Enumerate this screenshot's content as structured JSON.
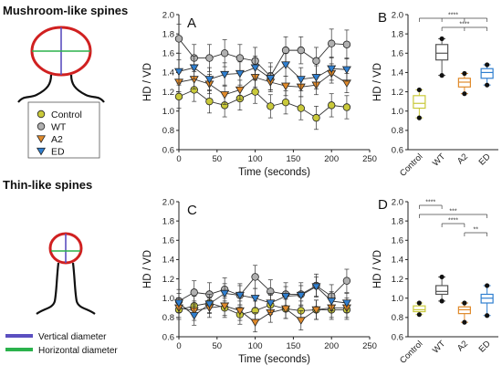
{
  "sections": {
    "mushroom_title": "Mushroom-like spines",
    "thin_title": "Thin-like spines"
  },
  "legend": {
    "items": [
      {
        "label": "Control",
        "color": "#c9c93a",
        "shape": "circle"
      },
      {
        "label": "WT",
        "color": "#b0b0b0",
        "shape": "circle"
      },
      {
        "label": "A2",
        "color": "#e08a2a",
        "shape": "triangle-down"
      },
      {
        "label": "ED",
        "color": "#2f7fd0",
        "shape": "triangle-down"
      }
    ]
  },
  "diameter_legend": [
    {
      "label": "Vertical diameter",
      "color": "#5b4fc0"
    },
    {
      "label": "Horizontal diameter",
      "color": "#2bb24c"
    }
  ],
  "chart_data": [
    {
      "panel": "A",
      "type": "line",
      "xlabel": "Time (seconds)",
      "ylabel": "HD / VD",
      "xlim": [
        0,
        250
      ],
      "ylim": [
        0.6,
        2.0
      ],
      "xticks": [
        0,
        50,
        100,
        150,
        200,
        250
      ],
      "yticks": [
        0.6,
        0.8,
        1.0,
        1.2,
        1.4,
        1.6,
        1.8,
        2.0
      ],
      "x": [
        0,
        20,
        40,
        60,
        80,
        100,
        120,
        140,
        160,
        180,
        200,
        220
      ],
      "series": [
        {
          "name": "Control",
          "color": "#c9c93a",
          "marker": "circle",
          "values": [
            1.15,
            1.22,
            1.1,
            1.06,
            1.13,
            1.2,
            1.05,
            1.09,
            1.03,
            0.93,
            1.06,
            1.04
          ],
          "errors": [
            0.12,
            0.12,
            0.12,
            0.12,
            0.12,
            0.12,
            0.12,
            0.12,
            0.12,
            0.12,
            0.12,
            0.12
          ]
        },
        {
          "name": "WT",
          "color": "#b0b0b0",
          "marker": "circle",
          "values": [
            1.75,
            1.55,
            1.55,
            1.6,
            1.55,
            1.52,
            1.36,
            1.63,
            1.63,
            1.52,
            1.7,
            1.69
          ],
          "errors": [
            0.15,
            0.14,
            0.14,
            0.14,
            0.14,
            0.14,
            0.14,
            0.14,
            0.14,
            0.14,
            0.15,
            0.15
          ]
        },
        {
          "name": "A2",
          "color": "#e08a2a",
          "marker": "triangle-down",
          "values": [
            1.3,
            1.33,
            1.28,
            1.17,
            1.22,
            1.35,
            1.3,
            1.26,
            1.25,
            1.27,
            1.39,
            1.29
          ],
          "errors": [
            0.1,
            0.1,
            0.1,
            0.1,
            0.1,
            0.1,
            0.1,
            0.1,
            0.1,
            0.1,
            0.1,
            0.1
          ]
        },
        {
          "name": "ED",
          "color": "#2f7fd0",
          "marker": "triangle-down",
          "values": [
            1.41,
            1.45,
            1.33,
            1.38,
            1.39,
            1.45,
            1.34,
            1.48,
            1.33,
            1.35,
            1.44,
            1.43
          ],
          "errors": [
            0.12,
            0.12,
            0.12,
            0.12,
            0.12,
            0.12,
            0.12,
            0.12,
            0.12,
            0.12,
            0.12,
            0.12
          ]
        }
      ]
    },
    {
      "panel": "B",
      "type": "box",
      "ylabel": "HD / VD",
      "ylim": [
        0.6,
        2.0
      ],
      "yticks": [
        0.6,
        0.8,
        1.0,
        1.2,
        1.4,
        1.6,
        1.8,
        2.0
      ],
      "categories": [
        "Control",
        "WT",
        "A2",
        "ED"
      ],
      "boxes": [
        {
          "name": "Control",
          "color": "#c9c93a",
          "min": 0.93,
          "q1": 1.03,
          "median": 1.08,
          "q3": 1.16,
          "max": 1.22
        },
        {
          "name": "WT",
          "color": "#555555",
          "min": 1.37,
          "q1": 1.53,
          "median": 1.6,
          "q3": 1.69,
          "max": 1.75
        },
        {
          "name": "A2",
          "color": "#e08a2a",
          "min": 1.18,
          "q1": 1.25,
          "median": 1.3,
          "q3": 1.34,
          "max": 1.39
        },
        {
          "name": "ED",
          "color": "#2f7fd0",
          "min": 1.27,
          "q1": 1.34,
          "median": 1.4,
          "q3": 1.44,
          "max": 1.48
        }
      ],
      "significance": [
        {
          "from": 0,
          "to": [
            1,
            2,
            3
          ],
          "label": "****"
        },
        {
          "from": 1,
          "to": [
            2,
            3
          ],
          "label": "****"
        }
      ]
    },
    {
      "panel": "C",
      "type": "line",
      "xlabel": "Time (seconds)",
      "ylabel": "HD / VD",
      "xlim": [
        0,
        250
      ],
      "ylim": [
        0.6,
        2.0
      ],
      "xticks": [
        0,
        50,
        100,
        150,
        200,
        250
      ],
      "yticks": [
        0.6,
        0.8,
        1.0,
        1.2,
        1.4,
        1.6,
        1.8,
        2.0
      ],
      "x": [
        0,
        20,
        40,
        60,
        80,
        100,
        120,
        140,
        160,
        180,
        200,
        220
      ],
      "series": [
        {
          "name": "Control",
          "color": "#c9c93a",
          "marker": "circle",
          "values": [
            0.88,
            0.92,
            0.95,
            0.9,
            0.83,
            0.87,
            0.93,
            0.89,
            0.87,
            0.88,
            0.88,
            0.88
          ],
          "errors": [
            0.1,
            0.1,
            0.1,
            0.1,
            0.1,
            0.1,
            0.1,
            0.1,
            0.1,
            0.1,
            0.1,
            0.1
          ]
        },
        {
          "name": "WT",
          "color": "#b0b0b0",
          "marker": "circle",
          "values": [
            0.97,
            1.06,
            1.04,
            1.09,
            1.03,
            1.22,
            1.07,
            1.04,
            1.04,
            1.13,
            1.02,
            1.18
          ],
          "errors": [
            0.12,
            0.12,
            0.12,
            0.12,
            0.12,
            0.12,
            0.12,
            0.12,
            0.12,
            0.12,
            0.12,
            0.12
          ]
        },
        {
          "name": "A2",
          "color": "#e08a2a",
          "marker": "triangle-down",
          "values": [
            0.9,
            0.87,
            0.9,
            0.92,
            0.87,
            0.75,
            0.85,
            0.89,
            0.77,
            0.88,
            0.9,
            0.9
          ],
          "errors": [
            0.1,
            0.1,
            0.1,
            0.1,
            0.1,
            0.1,
            0.1,
            0.1,
            0.1,
            0.1,
            0.1,
            0.1
          ]
        },
        {
          "name": "ED",
          "color": "#2f7fd0",
          "marker": "triangle-down",
          "values": [
            0.95,
            0.82,
            0.94,
            1.05,
            1.03,
            1.0,
            0.95,
            1.02,
            1.03,
            1.12,
            0.97,
            0.95
          ],
          "errors": [
            0.1,
            0.1,
            0.1,
            0.1,
            0.1,
            0.1,
            0.1,
            0.1,
            0.1,
            0.1,
            0.1,
            0.1
          ]
        }
      ]
    },
    {
      "panel": "D",
      "type": "box",
      "ylabel": "HD / VD",
      "ylim": [
        0.6,
        2.0
      ],
      "yticks": [
        0.6,
        0.8,
        1.0,
        1.2,
        1.4,
        1.6,
        1.8,
        2.0
      ],
      "categories": [
        "Control",
        "WT",
        "A2",
        "ED"
      ],
      "boxes": [
        {
          "name": "Control",
          "color": "#c9c93a",
          "min": 0.83,
          "q1": 0.86,
          "median": 0.88,
          "q3": 0.92,
          "max": 0.95
        },
        {
          "name": "WT",
          "color": "#555555",
          "min": 0.97,
          "q1": 1.04,
          "median": 1.07,
          "q3": 1.13,
          "max": 1.22
        },
        {
          "name": "A2",
          "color": "#e08a2a",
          "min": 0.75,
          "q1": 0.84,
          "median": 0.88,
          "q3": 0.91,
          "max": 0.95
        },
        {
          "name": "ED",
          "color": "#2f7fd0",
          "min": 0.82,
          "q1": 0.95,
          "median": 1.0,
          "q3": 1.04,
          "max": 1.13
        }
      ],
      "significance": [
        {
          "from": 0,
          "to": [
            1
          ],
          "label": "****"
        },
        {
          "from": 0,
          "to": [
            3
          ],
          "label": "***"
        },
        {
          "from": 1,
          "to": [
            2
          ],
          "label": "****"
        },
        {
          "from": 2,
          "to": [
            3
          ],
          "label": "**"
        }
      ]
    }
  ]
}
